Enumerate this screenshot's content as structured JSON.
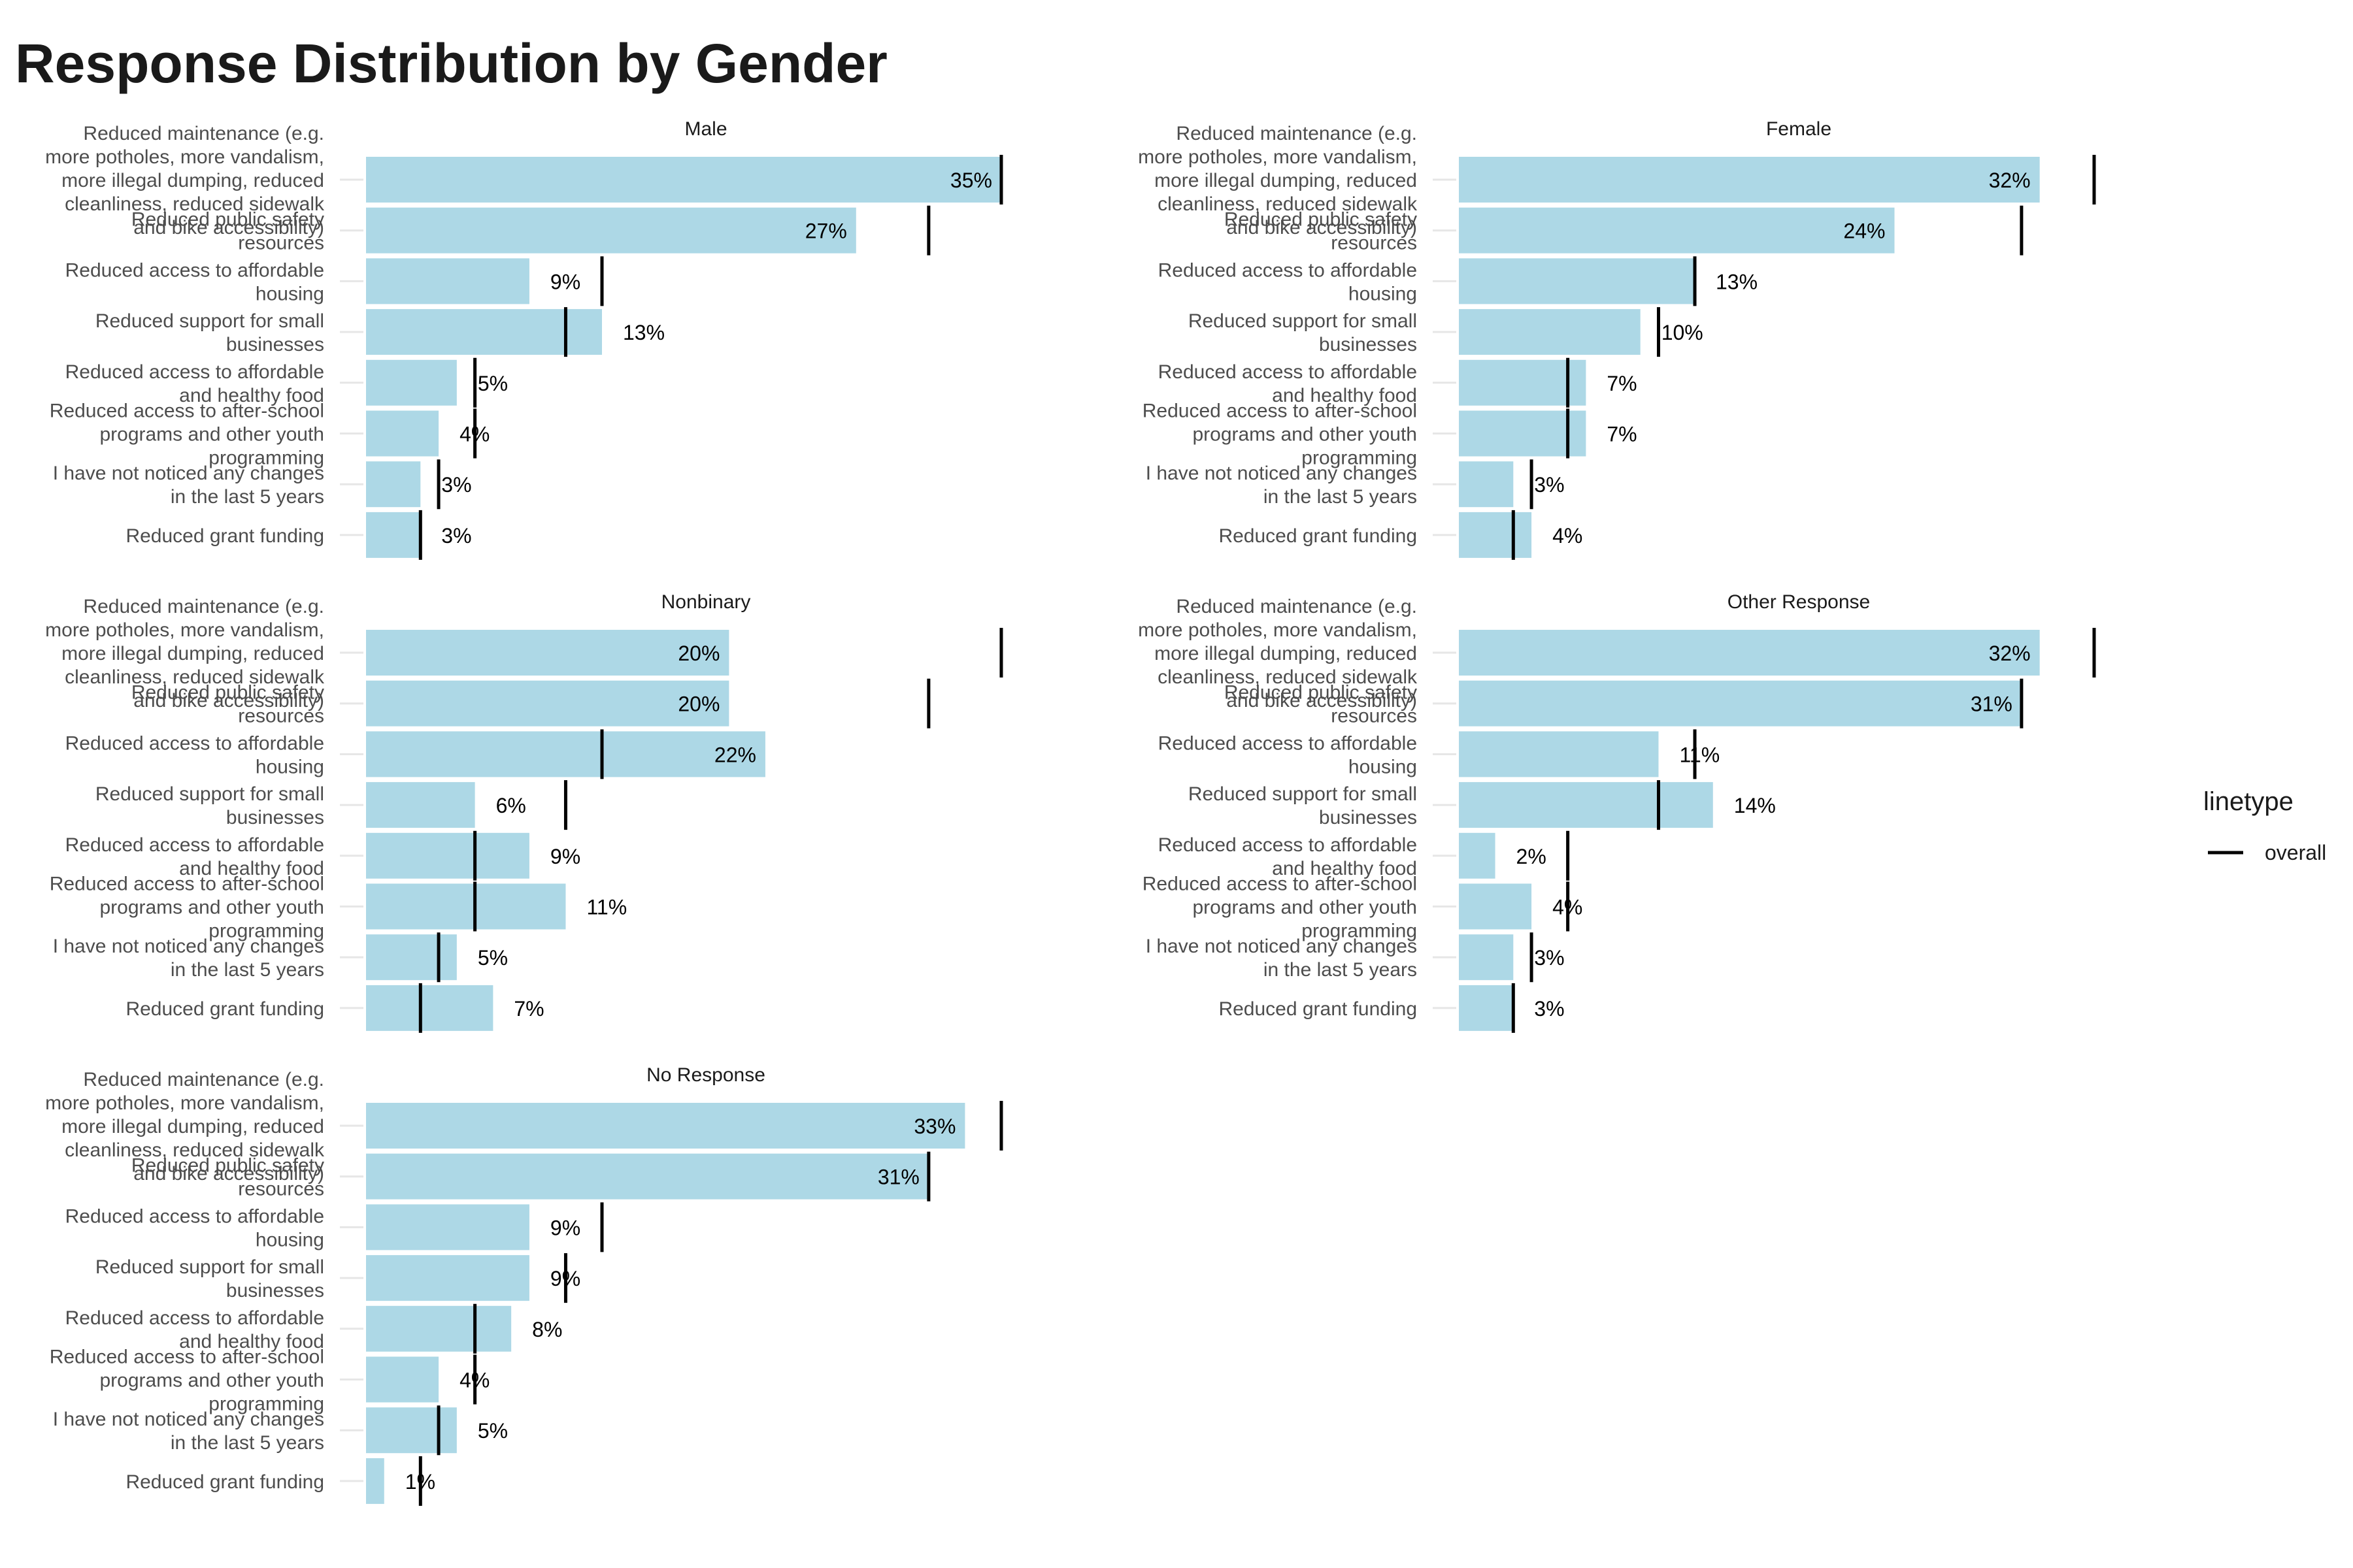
{
  "chart_data": {
    "type": "bar",
    "orientation": "horizontal",
    "title": "Response Distribution by Gender",
    "value_unit": "%",
    "bar_color": "#add8e6",
    "reference_line_color": "#000000",
    "categories": [
      "Reduced maintenance (e.g. more potholes, more vandalism, more illegal dumping, reduced cleanliness, reduced sidewalk and bike accessibility)",
      "Reduced public safety resources",
      "Reduced access to affordable housing",
      "Reduced support for small businesses",
      "Reduced access to affordable and healthy food",
      "Reduced access to after-school programs and other youth programming",
      "I have not noticed any changes in the last 5 years",
      "Reduced grant funding"
    ],
    "category_label_lines": [
      [
        "Reduced maintenance (e.g.",
        "more potholes, more vandalism,",
        "more illegal dumping, reduced",
        "cleanliness, reduced sidewalk",
        "and bike accessibility)"
      ],
      [
        "Reduced public safety",
        "resources"
      ],
      [
        "Reduced access to affordable",
        "housing"
      ],
      [
        "Reduced support for small",
        "businesses"
      ],
      [
        "Reduced access to affordable",
        "and healthy food"
      ],
      [
        "Reduced access to after-school",
        "programs and other youth",
        "programming"
      ],
      [
        "I have not noticed any changes",
        "in the last 5 years"
      ],
      [
        "Reduced grant funding"
      ]
    ],
    "overall": [
      35,
      31,
      13,
      11,
      6,
      6,
      4,
      3
    ],
    "facets": [
      {
        "name": "Male",
        "values": [
          35,
          27,
          9,
          13,
          5,
          4,
          3,
          3
        ],
        "labels": [
          "35%",
          "27%",
          "9%",
          "13%",
          "5%",
          "4%",
          "3%",
          "3%"
        ]
      },
      {
        "name": "Female",
        "values": [
          32,
          24,
          13,
          10,
          7,
          7,
          3,
          4
        ],
        "labels": [
          "32%",
          "24%",
          "13%",
          "10%",
          "7%",
          "7%",
          "3%",
          "4%"
        ]
      },
      {
        "name": "Nonbinary",
        "values": [
          20,
          20,
          22,
          6,
          9,
          11,
          5,
          7
        ],
        "labels": [
          "20%",
          "20%",
          "22%",
          "6%",
          "9%",
          "11%",
          "5%",
          "7%"
        ]
      },
      {
        "name": "Other Response",
        "values": [
          32,
          31,
          11,
          14,
          2,
          4,
          3,
          3
        ],
        "labels": [
          "32%",
          "31%",
          "11%",
          "14%",
          "2%",
          "4%",
          "3%",
          "3%"
        ]
      },
      {
        "name": "No Response",
        "values": [
          33,
          31,
          9,
          9,
          8,
          4,
          5,
          1
        ],
        "labels": [
          "33%",
          "31%",
          "9%",
          "9%",
          "8%",
          "4%",
          "5%",
          "1%"
        ]
      }
    ],
    "legend": {
      "title": "linetype",
      "entries": [
        "overall"
      ],
      "position": "right"
    },
    "grid": false
  }
}
